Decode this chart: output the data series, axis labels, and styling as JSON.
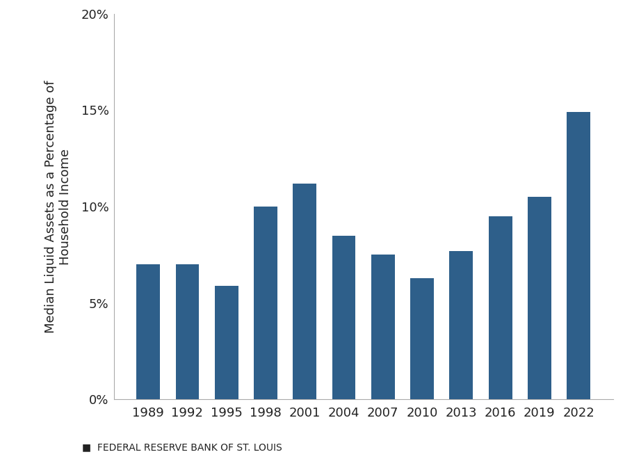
{
  "categories": [
    "1989",
    "1992",
    "1995",
    "1998",
    "2001",
    "2004",
    "2007",
    "2010",
    "2013",
    "2016",
    "2019",
    "2022"
  ],
  "values": [
    0.07,
    0.07,
    0.059,
    0.1,
    0.112,
    0.085,
    0.075,
    0.063,
    0.077,
    0.095,
    0.105,
    0.149
  ],
  "bar_color": "#2e5f8a",
  "ylabel": "Median Liquid Assets as a Percentage of\nHousehold Income",
  "ylim": [
    0,
    0.2
  ],
  "yticks": [
    0,
    0.05,
    0.1,
    0.15,
    0.2
  ],
  "ytick_labels": [
    "0%",
    "5%",
    "10%",
    "15%",
    "20%"
  ],
  "footnote": "FEDERAL RESERVE BANK OF ST. LOUIS",
  "background_color": "#ffffff",
  "spine_color": "#aaaaaa",
  "bar_width": 0.6
}
